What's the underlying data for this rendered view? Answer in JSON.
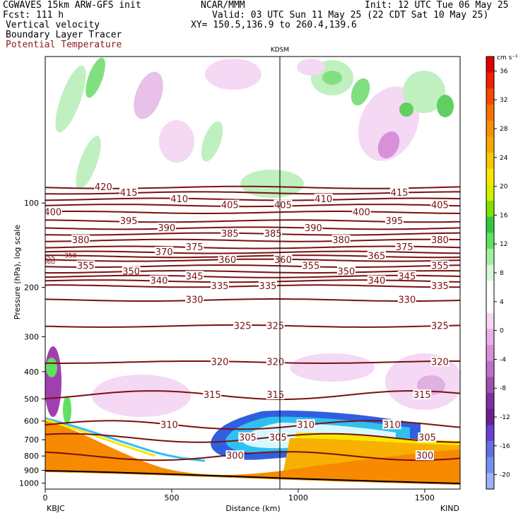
{
  "header": {
    "line1_left": "CGWAVES 15km ARW-GFS init",
    "line2_left": "Fcst:  111 h",
    "line1_mid": "NCAR/MMM",
    "line1_right": "Init: 12 UTC Tue 06 May 25",
    "line2_right": "Valid: 03 UTC Sun 11 May 25 (22 CDT Sat 10 May 25)",
    "line3_right": "XY= 150.5,136.9 to 260.4,139.6",
    "fields": [
      "Vertical velocity",
      "Boundary Layer Tracer",
      "Potential Temperature"
    ]
  },
  "colors": {
    "theta": "#7a1010",
    "terrain": "#f78a00",
    "field_potential_temperature": "#8b1a1a"
  },
  "chart_data": {
    "type": "heatmap",
    "title": "",
    "xlabel": "Distance (km)",
    "ylabel": "Pressure (hPa), log scale",
    "station_marker": {
      "label": "KDSM",
      "x": 940
    },
    "x_end_labels": {
      "left": "KBJC",
      "right": "KIND"
    },
    "xlim": [
      0,
      1640
    ],
    "x_ticks": [
      0,
      500,
      1000,
      1500
    ],
    "y_scale": "log",
    "ylim": [
      1050,
      30
    ],
    "y_ticks": [
      100,
      200,
      300,
      400,
      500,
      600,
      700,
      800,
      900,
      1000
    ],
    "colorbar": {
      "units": "cm s⁻¹",
      "labels": [
        36,
        32,
        28,
        24,
        20,
        16,
        12,
        8,
        4,
        0,
        -4,
        -8,
        -12,
        -16,
        -20
      ],
      "colors": [
        "#e00000",
        "#f02000",
        "#f84800",
        "#f87000",
        "#f89000",
        "#f8a800",
        "#f8c800",
        "#f8e800",
        "#d0f000",
        "#80e000",
        "#30c840",
        "#60e060",
        "#a0f0a0",
        "#d8f8d8",
        "#ffffff",
        "#ffffff",
        "#f4d8f4",
        "#e8b0e8",
        "#d890d8",
        "#c070c8",
        "#a050b0",
        "#8030a0",
        "#6a2090",
        "#6a3fd0",
        "#6070e0",
        "#7090f0",
        "#a0b0f8"
      ]
    },
    "isentropes": [
      {
        "theta": 420,
        "p": 88,
        "labels": [
          {
            "x": 230,
            "text": "420"
          }
        ]
      },
      {
        "theta": 415,
        "p": 92,
        "labels": [
          {
            "x": 330,
            "text": "415"
          },
          {
            "x": 1400,
            "text": "415"
          }
        ]
      },
      {
        "theta": 410,
        "p": 97,
        "labels": [
          {
            "x": 530,
            "text": "410"
          },
          {
            "x": 1100,
            "text": "410"
          }
        ]
      },
      {
        "theta": 405,
        "p": 102,
        "labels": [
          {
            "x": 730,
            "text": "405"
          },
          {
            "x": 940,
            "text": "405"
          },
          {
            "x": 1560,
            "text": "405"
          }
        ]
      },
      {
        "theta": 400,
        "p": 108,
        "labels": [
          {
            "x": 30,
            "text": "400"
          },
          {
            "x": 1250,
            "text": "400"
          }
        ]
      },
      {
        "theta": 395,
        "p": 116,
        "labels": [
          {
            "x": 330,
            "text": "395"
          },
          {
            "x": 1380,
            "text": "395"
          }
        ]
      },
      {
        "theta": 390,
        "p": 123,
        "labels": [
          {
            "x": 480,
            "text": "390"
          },
          {
            "x": 1060,
            "text": "390"
          }
        ]
      },
      {
        "theta": 385,
        "p": 129,
        "labels": [
          {
            "x": 730,
            "text": "385"
          },
          {
            "x": 900,
            "text": "385"
          }
        ]
      },
      {
        "theta": 380,
        "p": 136,
        "labels": [
          {
            "x": 140,
            "text": "380"
          },
          {
            "x": 1170,
            "text": "380"
          },
          {
            "x": 1560,
            "text": "380"
          }
        ]
      },
      {
        "theta": 375,
        "p": 144,
        "labels": [
          {
            "x": 590,
            "text": "375"
          },
          {
            "x": 1420,
            "text": "375"
          }
        ]
      },
      {
        "theta": 370,
        "p": 150,
        "labels": [
          {
            "x": 470,
            "text": "370"
          }
        ]
      },
      {
        "theta": 365,
        "p": 155,
        "labels": [
          {
            "x": 1310,
            "text": "365"
          }
        ]
      },
      {
        "theta": 360,
        "p": 160,
        "labels": [
          {
            "x": 720,
            "text": "360"
          },
          {
            "x": 940,
            "text": "360"
          }
        ]
      },
      {
        "theta": 355,
        "p": 168,
        "labels": [
          {
            "x": 160,
            "text": "355"
          },
          {
            "x": 1050,
            "text": "355"
          },
          {
            "x": 1560,
            "text": "355"
          }
        ]
      },
      {
        "theta": 350,
        "p": 176,
        "labels": [
          {
            "x": 340,
            "text": "350"
          },
          {
            "x": 1190,
            "text": "350"
          }
        ]
      },
      {
        "theta": 345,
        "p": 183,
        "labels": [
          {
            "x": 590,
            "text": "345"
          },
          {
            "x": 1430,
            "text": "345"
          }
        ]
      },
      {
        "theta": 340,
        "p": 190,
        "labels": [
          {
            "x": 450,
            "text": "340"
          },
          {
            "x": 1310,
            "text": "340"
          }
        ]
      },
      {
        "theta": 335,
        "p": 198,
        "labels": [
          {
            "x": 690,
            "text": "335"
          },
          {
            "x": 880,
            "text": "335"
          },
          {
            "x": 1560,
            "text": "335"
          }
        ]
      },
      {
        "theta": 330,
        "p": 222,
        "labels": [
          {
            "x": 590,
            "text": "330"
          },
          {
            "x": 1430,
            "text": "330"
          }
        ]
      },
      {
        "theta": 325,
        "p": 275,
        "labels": [
          {
            "x": 780,
            "text": "325"
          },
          {
            "x": 910,
            "text": "325"
          },
          {
            "x": 1560,
            "text": "325"
          }
        ]
      },
      {
        "theta": 320,
        "p": 370,
        "labels": [
          {
            "x": 690,
            "text": "320"
          },
          {
            "x": 910,
            "text": "320"
          },
          {
            "x": 1560,
            "text": "320"
          }
        ]
      },
      {
        "theta": 315,
        "p": 485,
        "labels": [
          {
            "x": 660,
            "text": "315"
          },
          {
            "x": 910,
            "text": "315"
          },
          {
            "x": 1490,
            "text": "315"
          }
        ]
      },
      {
        "theta": 310,
        "p": 620,
        "labels": [
          {
            "x": 490,
            "text": "310"
          },
          {
            "x": 1030,
            "text": "310"
          },
          {
            "x": 1370,
            "text": "310"
          }
        ]
      },
      {
        "theta": 305,
        "p": 690,
        "labels": [
          {
            "x": 800,
            "text": "305"
          },
          {
            "x": 920,
            "text": "305"
          },
          {
            "x": 1510,
            "text": "305"
          }
        ]
      },
      {
        "theta": 300,
        "p": 800,
        "labels": [
          {
            "x": 750,
            "text": "300"
          },
          {
            "x": 1500,
            "text": "300"
          }
        ]
      }
    ],
    "low_level_labels": [
      {
        "x": 15,
        "p": 157,
        "text": "355"
      },
      {
        "x": 15,
        "p": 162,
        "text": "360"
      },
      {
        "x": 100,
        "p": 154,
        "text": "358"
      }
    ]
  }
}
